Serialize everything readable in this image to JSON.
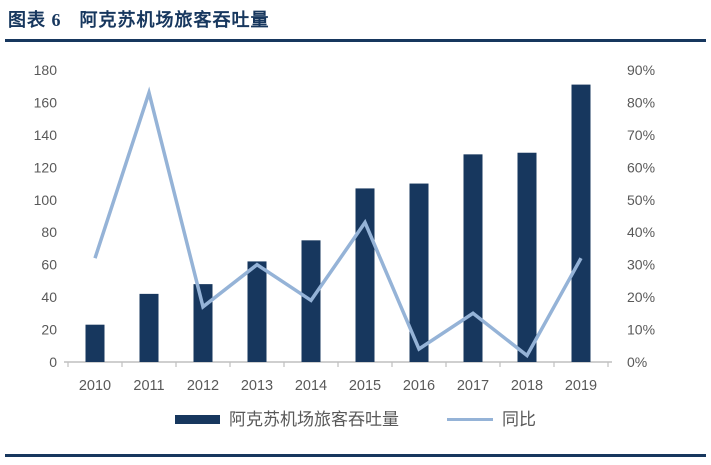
{
  "figure": {
    "label": "图表 6",
    "title": "阿克苏机场旅客吞吐量"
  },
  "colors": {
    "navy": "#17375E",
    "line_blue": "#95B3D7",
    "axis_text": "#595959",
    "axis_line": "#BFBFBF",
    "background": "#FFFFFF"
  },
  "chart_data": {
    "type": "bar",
    "subtype": "bar+line combo, dual axis",
    "categories": [
      "2010",
      "2011",
      "2012",
      "2013",
      "2014",
      "2015",
      "2016",
      "2017",
      "2018",
      "2019"
    ],
    "series": [
      {
        "name": "阿克苏机场旅客吞吐量",
        "type": "bar",
        "axis": "left",
        "values": [
          23,
          42,
          48,
          62,
          75,
          107,
          110,
          128,
          129,
          171
        ]
      },
      {
        "name": "同比",
        "type": "line",
        "axis": "right",
        "unit": "%",
        "values": [
          32,
          83,
          17,
          30,
          19,
          43,
          4,
          15,
          2,
          32
        ]
      }
    ],
    "left_axis": {
      "min": 0,
      "max": 180,
      "step": 20,
      "ticks": [
        "0",
        "20",
        "40",
        "60",
        "80",
        "100",
        "120",
        "140",
        "160",
        "180"
      ]
    },
    "right_axis": {
      "min": 0,
      "max": 90,
      "step": 10,
      "ticks": [
        "0%",
        "10%",
        "20%",
        "30%",
        "40%",
        "50%",
        "60%",
        "70%",
        "80%",
        "90%"
      ]
    },
    "grid": false,
    "legend_position": "bottom",
    "legend": [
      "阿克苏机场旅客吞吐量",
      "同比"
    ]
  }
}
